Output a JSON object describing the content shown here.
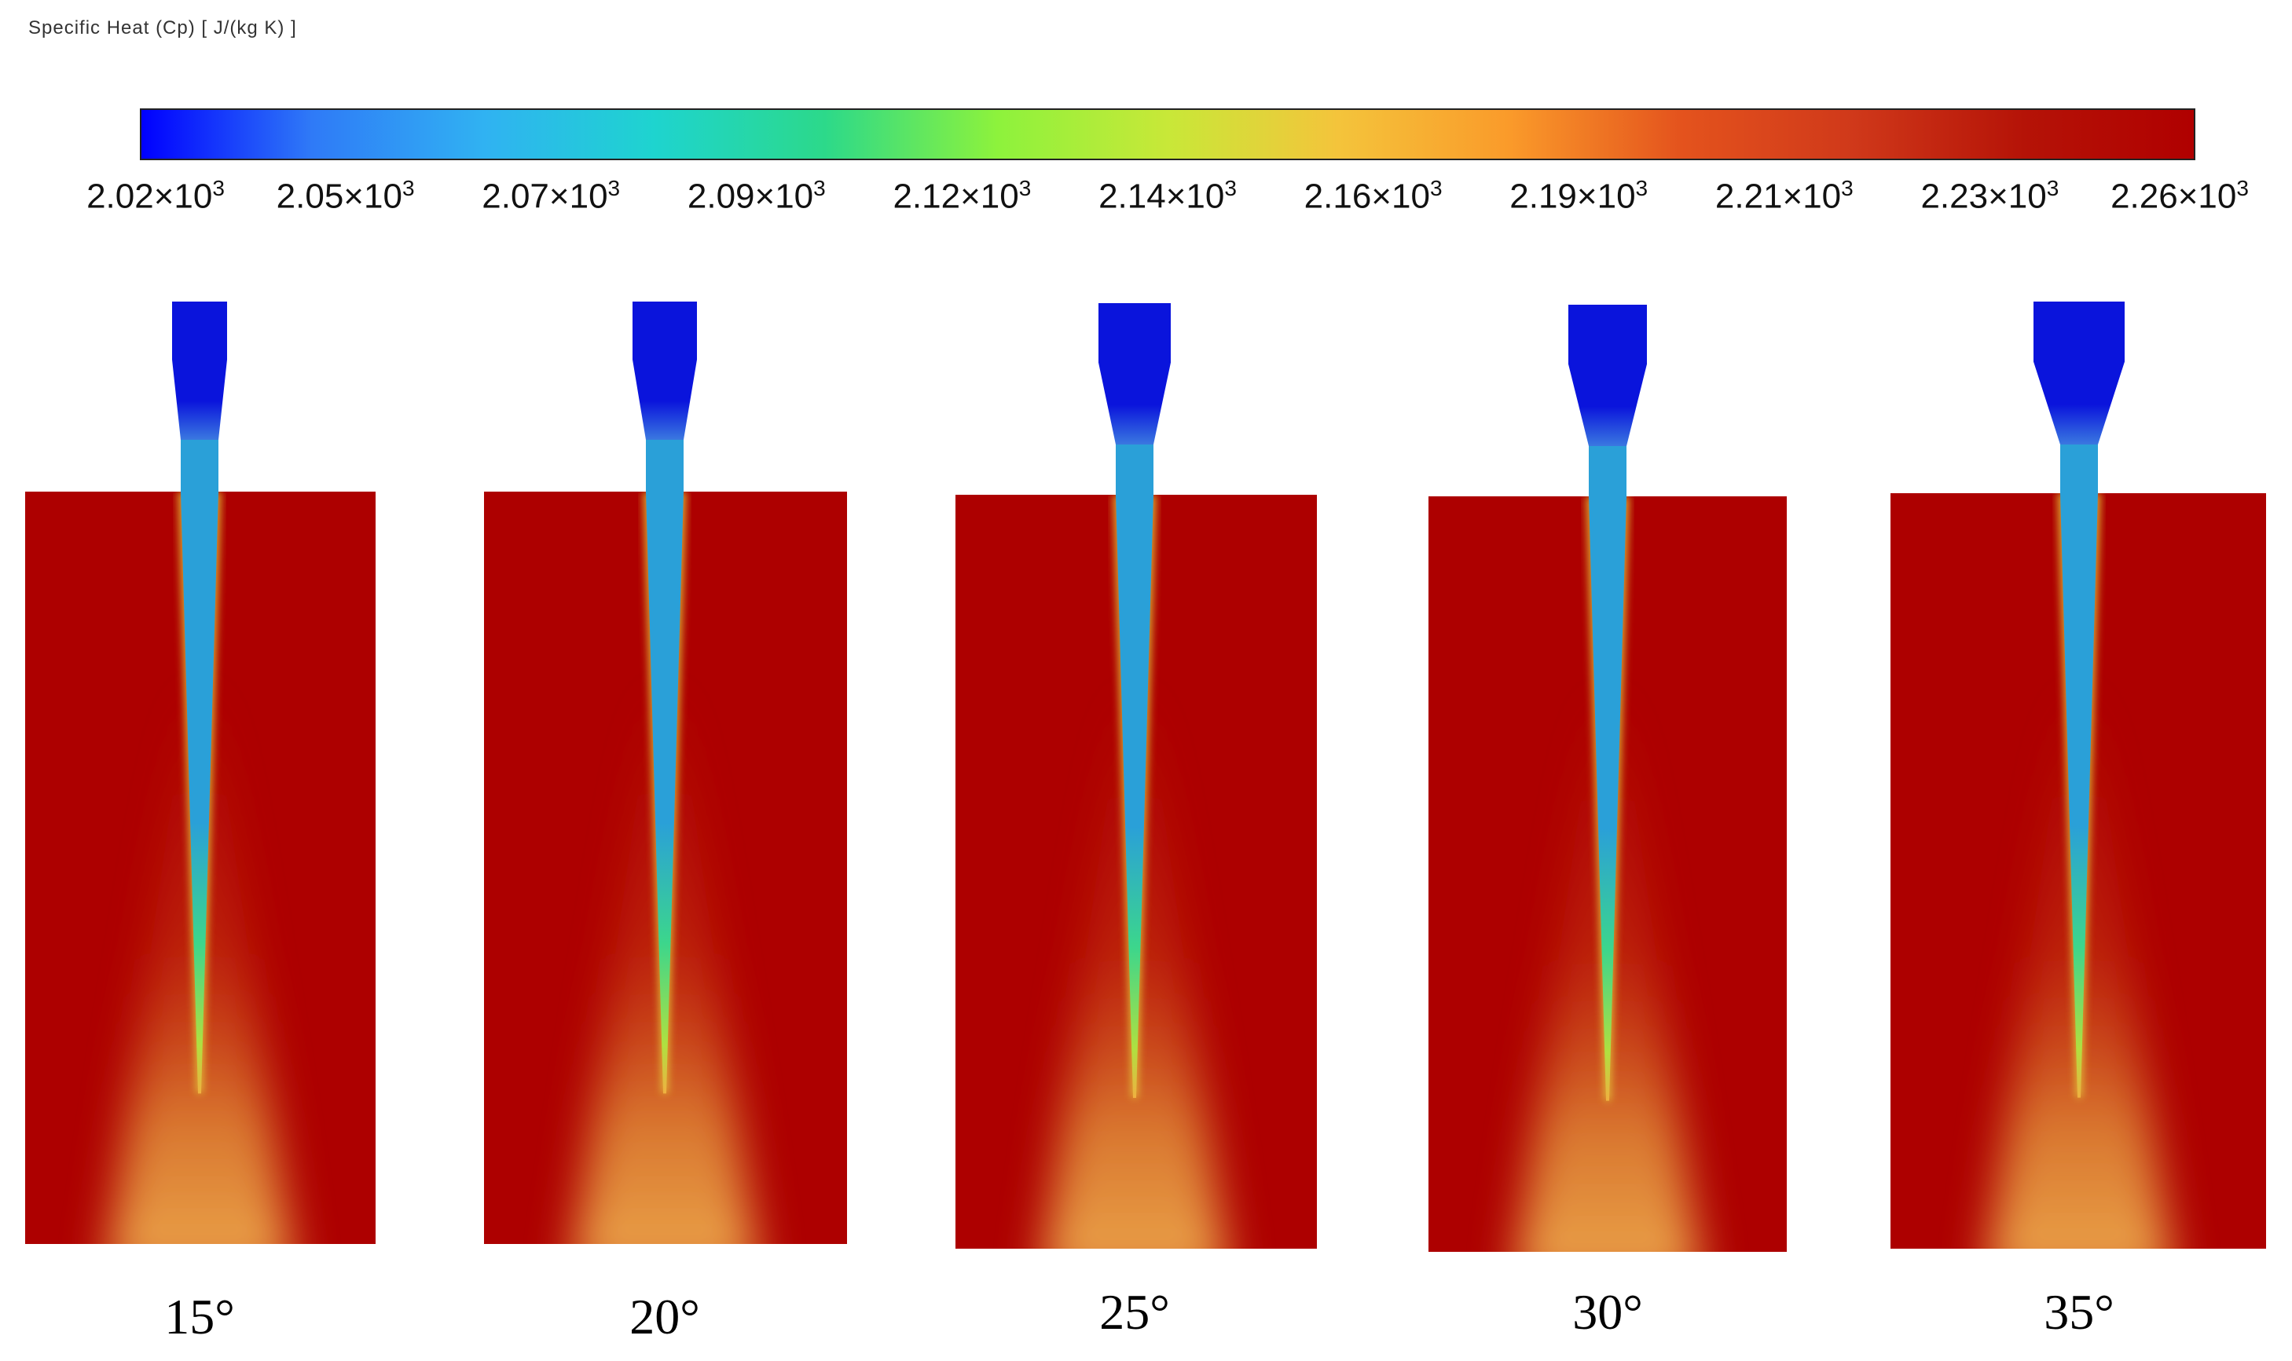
{
  "legend": {
    "title": "Specific Heat (Cp) [ J/(kg K) ]",
    "colors": [
      "#0000ff",
      "#2f7af7",
      "#30b2f2",
      "#1ed4cf",
      "#2cd98a",
      "#8df23c",
      "#c8e838",
      "#f4c43b",
      "#fa9a2a",
      "#e4531d",
      "#d0391a",
      "#b51307",
      "#b00000"
    ],
    "ticks": [
      {
        "mantissa": "2.02",
        "exp": "3"
      },
      {
        "mantissa": "2.05",
        "exp": "3"
      },
      {
        "mantissa": "2.07",
        "exp": "3"
      },
      {
        "mantissa": "2.09",
        "exp": "3"
      },
      {
        "mantissa": "2.12",
        "exp": "3"
      },
      {
        "mantissa": "2.14",
        "exp": "3"
      },
      {
        "mantissa": "2.16",
        "exp": "3"
      },
      {
        "mantissa": "2.19",
        "exp": "3"
      },
      {
        "mantissa": "2.21",
        "exp": "3"
      },
      {
        "mantissa": "2.23",
        "exp": "3"
      },
      {
        "mantissa": "2.26",
        "exp": "3"
      }
    ]
  },
  "panels": [
    {
      "angle": "15°"
    },
    {
      "angle": "20°"
    },
    {
      "angle": "25°"
    },
    {
      "angle": "30°"
    },
    {
      "angle": "35°"
    }
  ],
  "colors": {
    "chamber": "#ad0000",
    "inlet": "#0a14dc",
    "jet": "#2aa0d8",
    "jet_mid": "#3cd68c",
    "jet_tail": "#f0b040"
  }
}
